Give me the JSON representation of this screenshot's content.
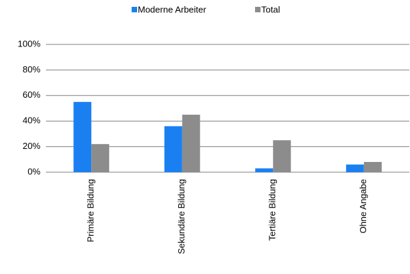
{
  "chart_data": {
    "type": "bar",
    "categories": [
      "Primäre Bildung",
      "Sekundäre Bildung",
      "Tertiäre Bildung",
      "Ohne Angabe"
    ],
    "series": [
      {
        "name": "Moderne Arbeiter",
        "color": "#1a80f2",
        "values": [
          55,
          36,
          3,
          6
        ]
      },
      {
        "name": "Total",
        "color": "#8c8c8c",
        "values": [
          22,
          45,
          25,
          8
        ]
      }
    ],
    "ylim": [
      0,
      100
    ],
    "yticks": [
      {
        "value": 0,
        "label": "0%"
      },
      {
        "value": 20,
        "label": "20%"
      },
      {
        "value": 40,
        "label": "40%"
      },
      {
        "value": 60,
        "label": "60%"
      },
      {
        "value": 80,
        "label": "80%"
      },
      {
        "value": 100,
        "label": "100%"
      }
    ],
    "grid": true,
    "legend": "top"
  }
}
